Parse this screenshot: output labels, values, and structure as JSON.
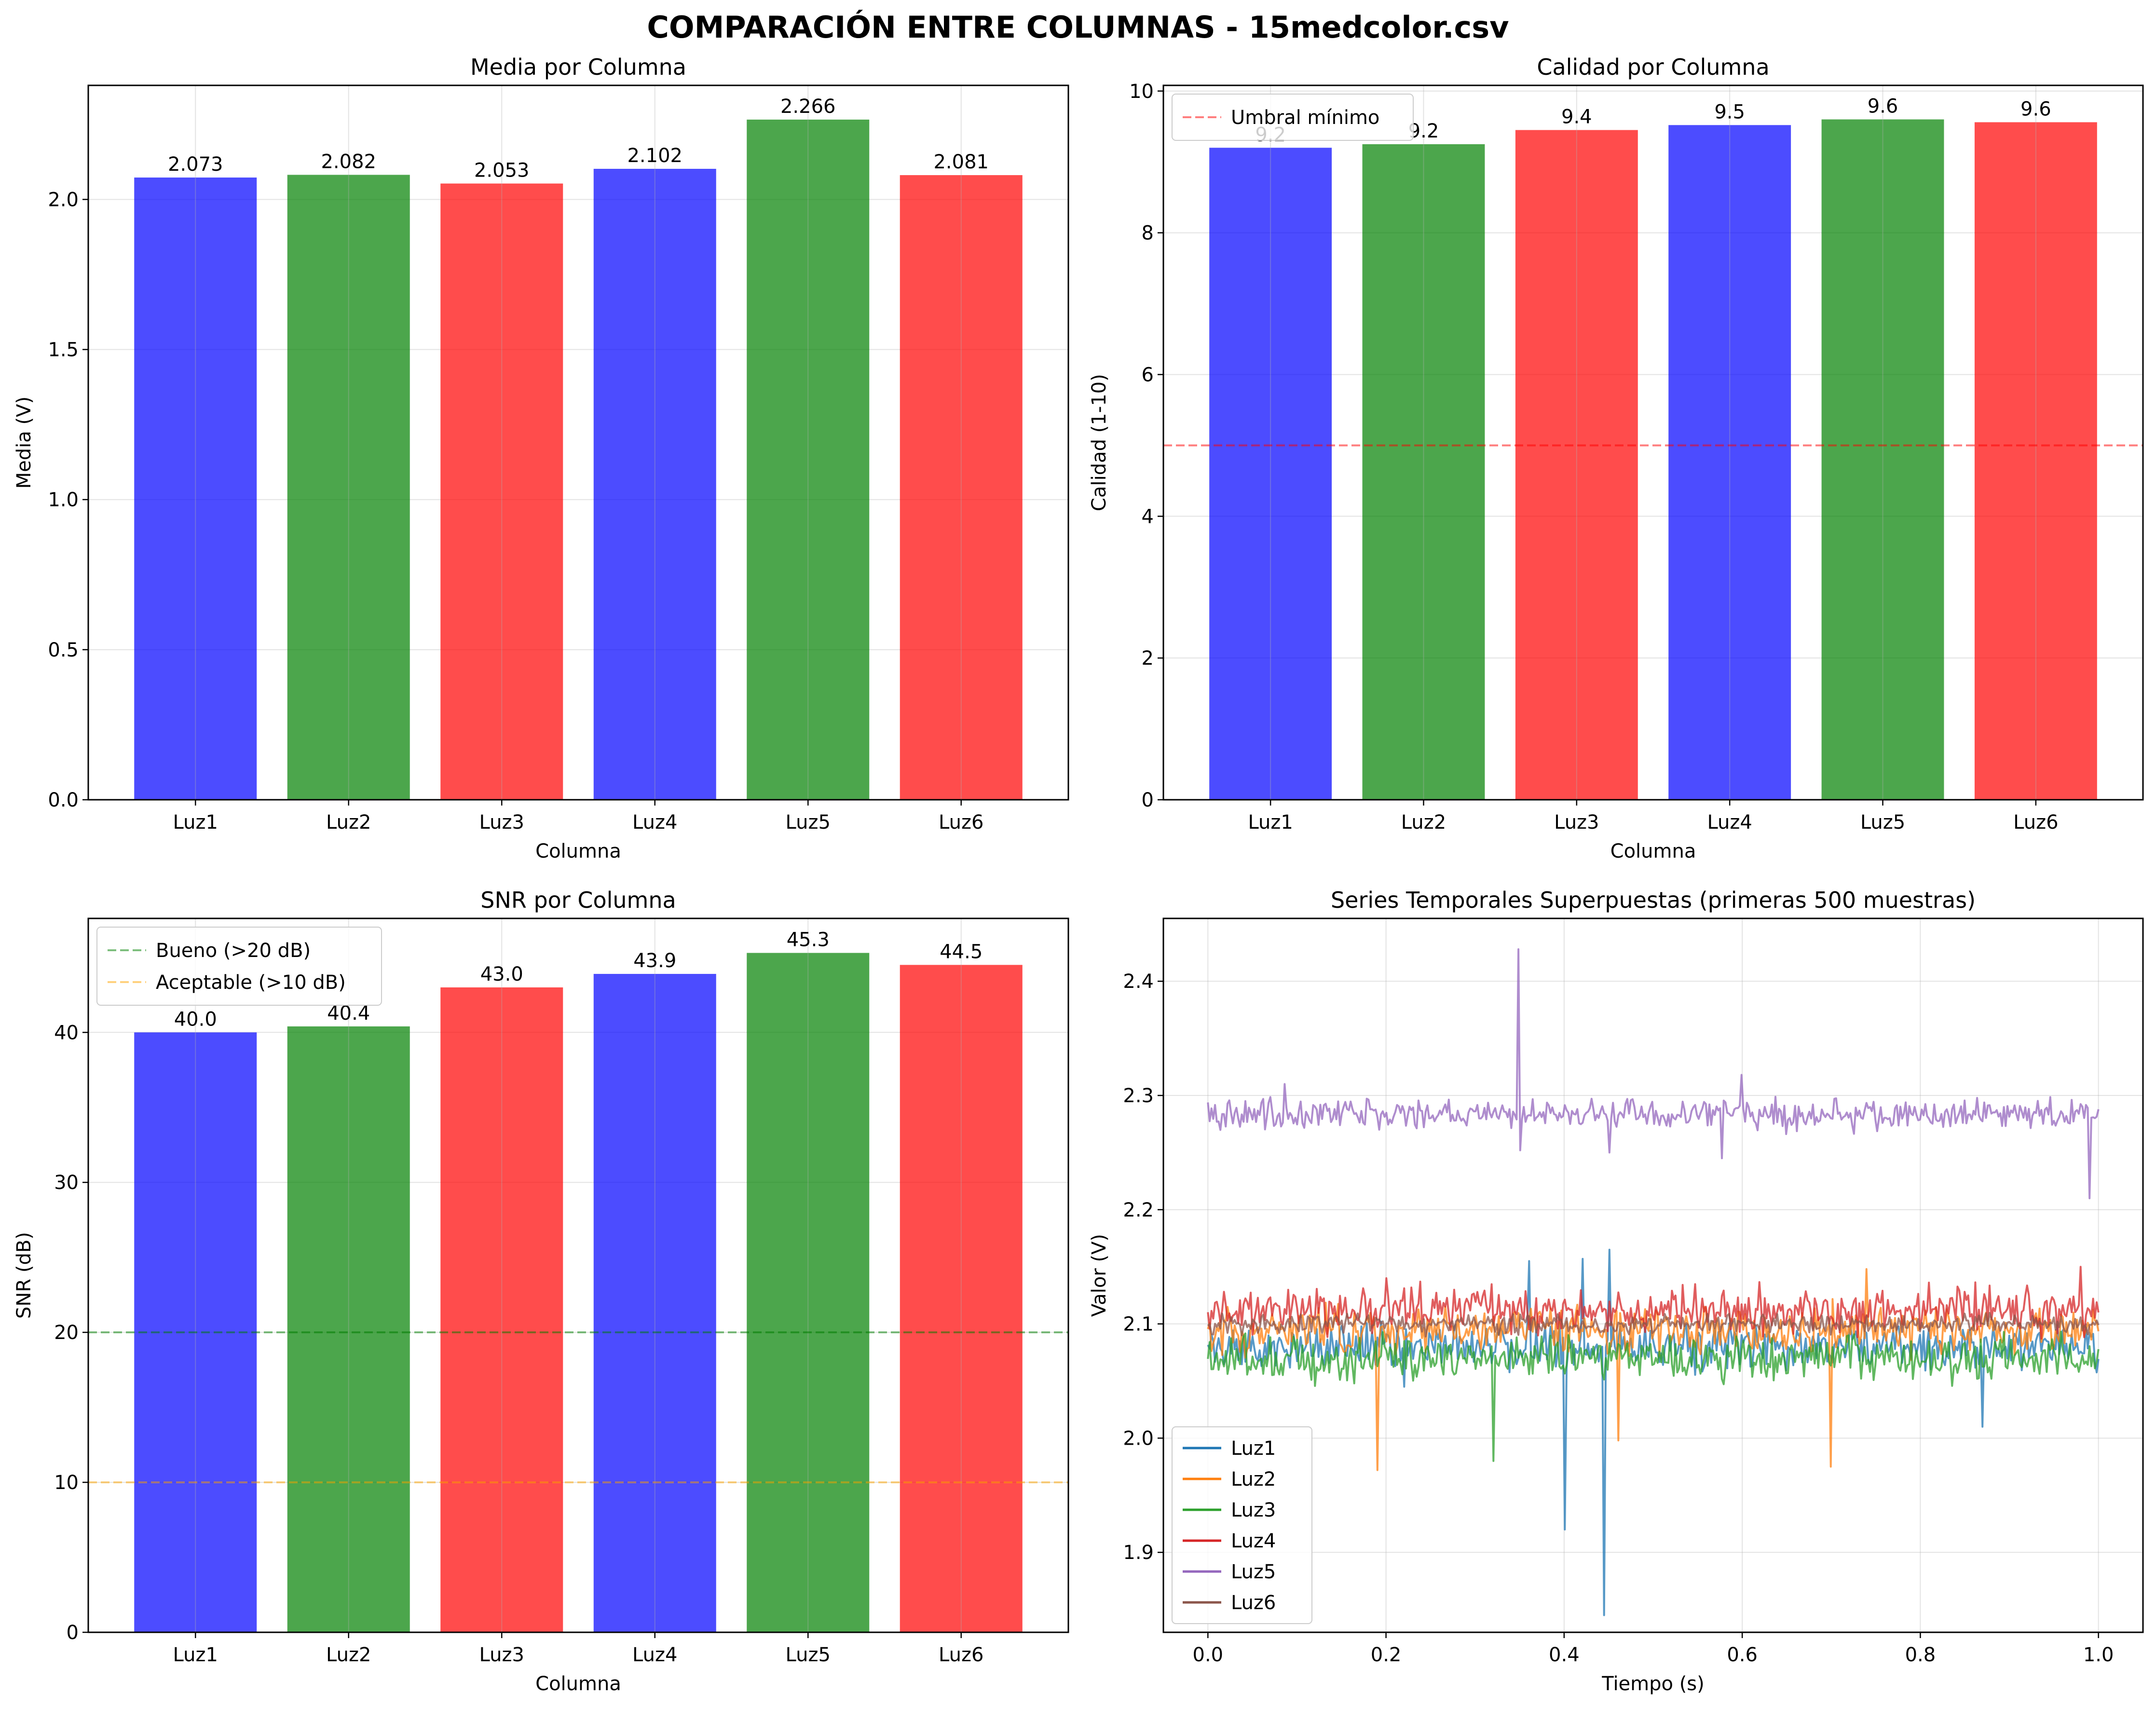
{
  "suptitle": "COMPARACIÓN ENTRE COLUMNAS - 15medcolor.csv",
  "colors": {
    "blue": "#0000ff",
    "green": "#008000",
    "red": "#ff0000",
    "orange": "#ffa500"
  },
  "chart_data": [
    {
      "type": "bar",
      "title": "Media por Columna",
      "xlabel": "Columna",
      "ylabel": "Media (V)",
      "ylim": [
        0,
        2.38
      ],
      "yticks": [
        "0.0",
        "0.5",
        "1.0",
        "1.5",
        "2.0"
      ],
      "categories": [
        "Luz1",
        "Luz2",
        "Luz3",
        "Luz4",
        "Luz5",
        "Luz6"
      ],
      "values": [
        2.073,
        2.082,
        2.053,
        2.102,
        2.266,
        2.081
      ],
      "value_labels": [
        "2.073",
        "2.082",
        "2.053",
        "2.102",
        "2.266",
        "2.081"
      ],
      "bar_colors": [
        "blue",
        "green",
        "red",
        "blue",
        "green",
        "red"
      ],
      "grid": true
    },
    {
      "type": "bar",
      "title": "Calidad por Columna",
      "xlabel": "Columna",
      "ylabel": "Calidad (1-10)",
      "ylim": [
        0,
        10.08
      ],
      "yticks": [
        "0",
        "2",
        "4",
        "6",
        "8",
        "10"
      ],
      "categories": [
        "Luz1",
        "Luz2",
        "Luz3",
        "Luz4",
        "Luz5",
        "Luz6"
      ],
      "values": [
        9.2,
        9.25,
        9.45,
        9.52,
        9.6,
        9.56
      ],
      "value_labels": [
        "9.2",
        "9.2",
        "9.4",
        "9.5",
        "9.6",
        "9.6"
      ],
      "bar_colors": [
        "blue",
        "green",
        "red",
        "blue",
        "green",
        "red"
      ],
      "reference_lines": [
        {
          "label": "Umbral mínimo",
          "y": 5,
          "color": "red"
        }
      ],
      "legend": "top-left",
      "grid": true
    },
    {
      "type": "bar",
      "title": "SNR por Columna",
      "xlabel": "Columna",
      "ylabel": "SNR (dB)",
      "ylim": [
        0,
        47.6
      ],
      "yticks": [
        "0",
        "10",
        "20",
        "30",
        "40"
      ],
      "categories": [
        "Luz1",
        "Luz2",
        "Luz3",
        "Luz4",
        "Luz5",
        "Luz6"
      ],
      "values": [
        40.0,
        40.4,
        43.0,
        43.9,
        45.3,
        44.5
      ],
      "value_labels": [
        "40.0",
        "40.4",
        "43.0",
        "43.9",
        "45.3",
        "44.5"
      ],
      "bar_colors": [
        "blue",
        "green",
        "red",
        "blue",
        "green",
        "red"
      ],
      "reference_lines": [
        {
          "label": "Bueno (>20 dB)",
          "y": 20,
          "color": "green"
        },
        {
          "label": "Aceptable (>10 dB)",
          "y": 10,
          "color": "orange"
        }
      ],
      "legend": "top-left",
      "grid": true
    },
    {
      "type": "line",
      "title": "Series Temporales Superpuestas (primeras 500 muestras)",
      "xlabel": "Tiempo (s)",
      "ylabel": "Valor (V)",
      "xlim": [
        -0.05,
        1.05
      ],
      "ylim": [
        1.83,
        2.455
      ],
      "xticks": [
        "0.0",
        "0.2",
        "0.4",
        "0.6",
        "0.8",
        "1.0"
      ],
      "yticks": [
        "1.9",
        "2.0",
        "2.1",
        "2.2",
        "2.3",
        "2.4"
      ],
      "legend": "bottom-left",
      "grid": true,
      "series": [
        {
          "name": "Luz1",
          "color": "#1f77b4",
          "base": 2.08,
          "noise": 0.012,
          "spikes": [
            [
              0.22,
              2.045
            ],
            [
              0.36,
              2.155
            ],
            [
              0.4,
              1.92
            ],
            [
              0.42,
              2.157
            ],
            [
              0.445,
              1.845
            ],
            [
              0.45,
              2.165
            ],
            [
              0.87,
              2.01
            ]
          ]
        },
        {
          "name": "Luz2",
          "color": "#ff7f0e",
          "base": 2.095,
          "noise": 0.012,
          "spikes": [
            [
              0.19,
              1.972
            ],
            [
              0.46,
              1.998
            ],
            [
              0.7,
              1.975
            ],
            [
              0.74,
              2.148
            ]
          ]
        },
        {
          "name": "Luz3",
          "color": "#2ca02c",
          "base": 2.07,
          "noise": 0.012,
          "spikes": [
            [
              0.32,
              1.98
            ]
          ]
        },
        {
          "name": "Luz4",
          "color": "#d62728",
          "base": 2.112,
          "noise": 0.012,
          "spikes": [
            [
              0.2,
              2.14
            ],
            [
              0.98,
              2.15
            ]
          ]
        },
        {
          "name": "Luz5",
          "color": "#9467bd",
          "base": 2.283,
          "noise": 0.008,
          "spikes": [
            [
              0.087,
              2.31
            ],
            [
              0.348,
              2.428
            ],
            [
              0.35,
              2.252
            ],
            [
              0.45,
              2.25
            ],
            [
              0.578,
              2.245
            ],
            [
              0.6,
              2.318
            ],
            [
              0.99,
              2.21
            ]
          ]
        },
        {
          "name": "Luz6",
          "color": "#8c564b",
          "base": 2.1,
          "noise": 0.005,
          "spikes": []
        }
      ]
    }
  ]
}
